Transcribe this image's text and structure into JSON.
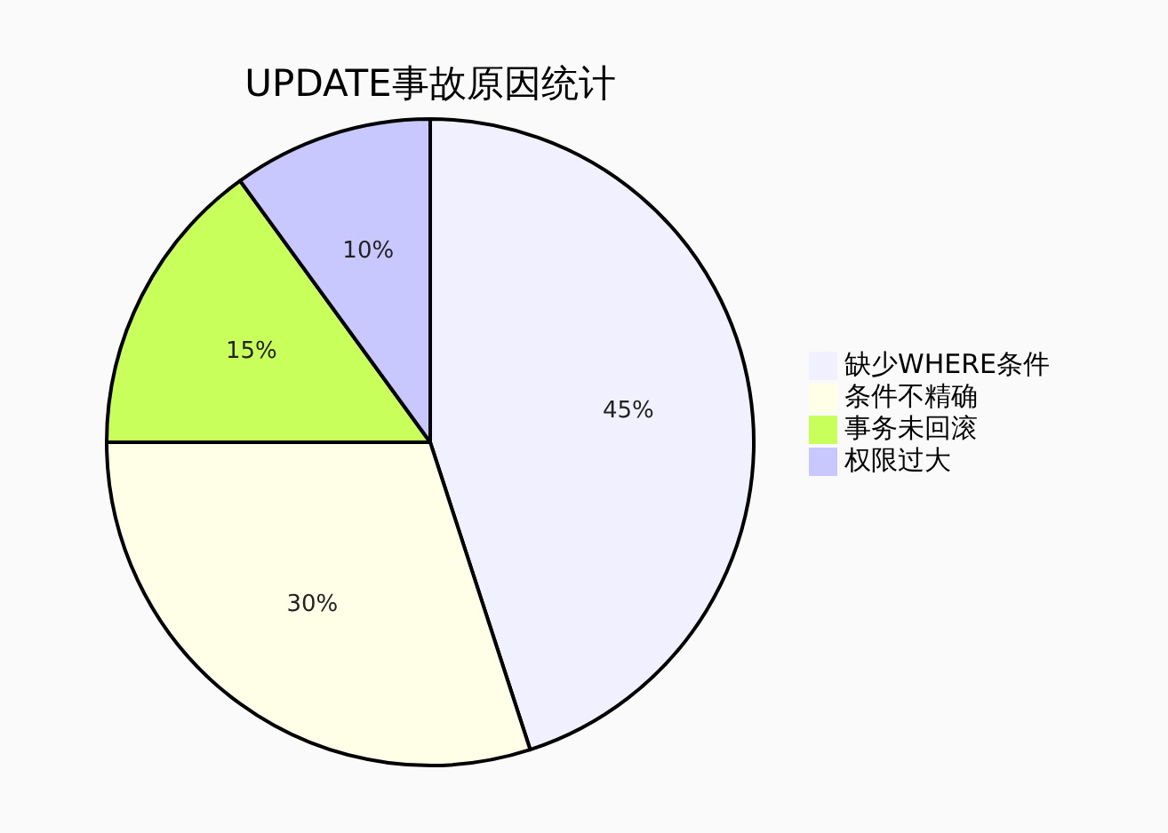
{
  "chart_data": {
    "type": "pie",
    "title": "UPDATE事故原因统计",
    "categories": [
      "缺少WHERE条件",
      "条件不精确",
      "事务未回滚",
      "权限过大"
    ],
    "values": [
      45,
      30,
      15,
      10
    ],
    "colors": [
      "#f0f0ff",
      "#ffffe8",
      "#c8ff5a",
      "#c8c8ff"
    ],
    "value_labels": [
      "45%",
      "30%",
      "15%",
      "10%"
    ],
    "legend": "right"
  }
}
